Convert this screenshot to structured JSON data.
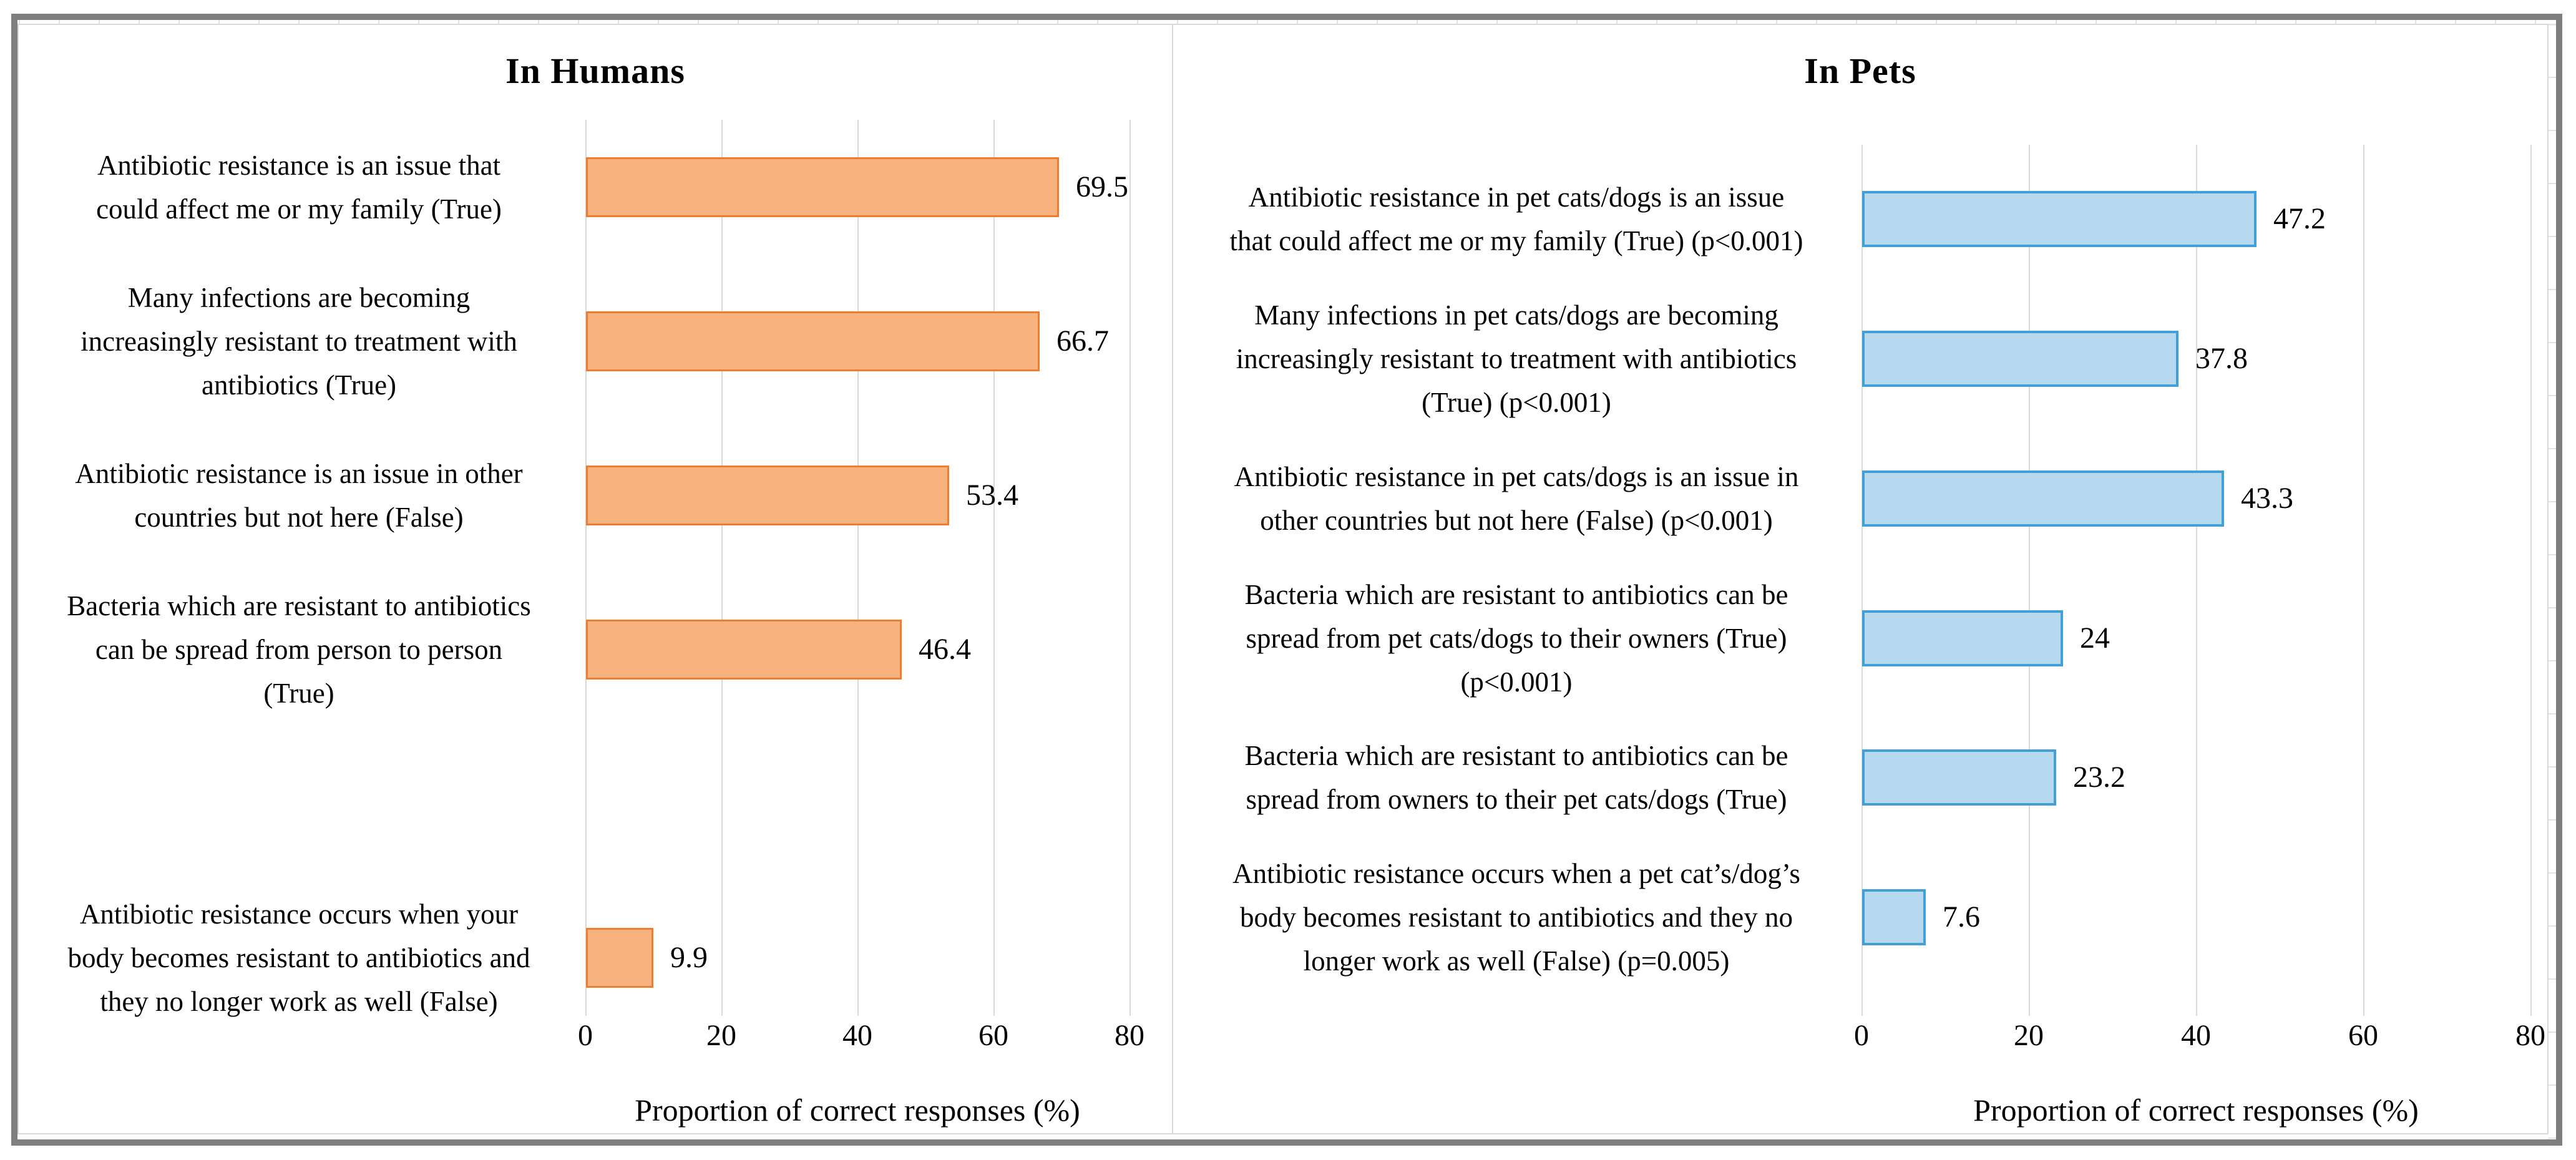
{
  "figure": {
    "type": "dual-horizontal-bar-figure",
    "frame_color": "#7f7f7f",
    "gridline_color": "#d9d9d9",
    "background": "#ffffff"
  },
  "chart_data": [
    {
      "type": "bar",
      "orientation": "horizontal",
      "title": "In Humans",
      "xlabel": "Proportion of correct responses (%)",
      "xlim": [
        0,
        80
      ],
      "xticks": [
        0,
        20,
        40,
        60,
        80
      ],
      "xtick_labels": [
        "0",
        "20",
        "40",
        "60",
        "80"
      ],
      "grid": true,
      "legend": false,
      "bar_fill": "#f7b27e",
      "bar_border": "#ed7d31",
      "categories": [
        "Antibiotic resistance is an issue that\ncould affect me or my family (True)",
        "Many infections are becoming\nincreasingly resistant to treatment with\nantibiotics (True)",
        "Antibiotic resistance is an issue in other\ncountries but not here (False)",
        "Bacteria which are resistant to antibiotics\ncan be spread from person to person\n(True)",
        "",
        "Antibiotic resistance occurs when your\nbody becomes resistant to antibiotics and\nthey no longer work as well (False)"
      ],
      "values": [
        69.5,
        66.7,
        53.4,
        46.4,
        null,
        9.9
      ],
      "value_labels": [
        "69.5",
        "66.7",
        "53.4",
        "46.4",
        "",
        "9.9"
      ]
    },
    {
      "type": "bar",
      "orientation": "horizontal",
      "title": "In Pets",
      "xlabel": "Proportion of correct responses (%)",
      "xlim": [
        0,
        80
      ],
      "xticks": [
        0,
        20,
        40,
        60,
        80
      ],
      "xtick_labels": [
        "0",
        "20",
        "40",
        "60",
        "80"
      ],
      "grid": true,
      "legend": false,
      "bar_fill": "#b7d9f0",
      "bar_border": "#41a0d5",
      "categories": [
        "Antibiotic resistance in pet cats/dogs is an issue\nthat could affect me or my family (True) (p<0.001)",
        "Many infections in pet cats/dogs are becoming\nincreasingly resistant to treatment with antibiotics\n(True) (p<0.001)",
        "Antibiotic resistance in pet cats/dogs is an issue in\nother countries but not here (False) (p<0.001)",
        "Bacteria which are resistant to antibiotics can be\nspread from pet cats/dogs to their owners (True)\n(p<0.001)",
        "Bacteria which are resistant to antibiotics can be\nspread from owners to their pet cats/dogs (True)",
        "Antibiotic resistance occurs when a pet cat’s/dog’s\nbody becomes resistant to antibiotics and they no\nlonger work as well (False) (p=0.005)"
      ],
      "values": [
        47.2,
        37.8,
        43.3,
        24,
        23.2,
        7.6
      ],
      "value_labels": [
        "47.2",
        "37.8",
        "43.3",
        "24",
        "23.2",
        "7.6"
      ]
    }
  ]
}
